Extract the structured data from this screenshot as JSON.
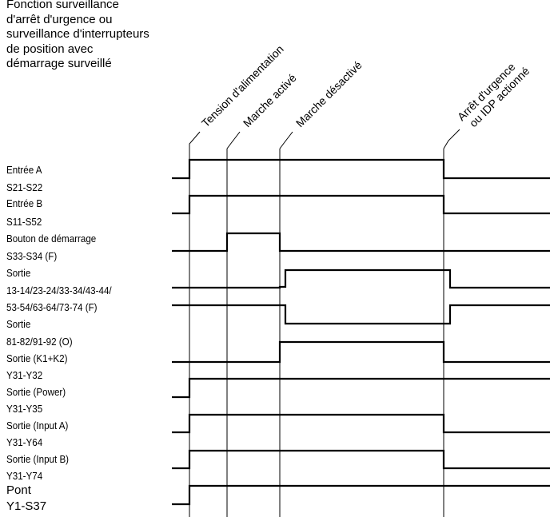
{
  "title": [
    "Fonction surveillance",
    "d'arrêt d'urgence ou",
    "surveillance d'interrupteurs",
    "de position avec",
    "démarrage surveillé"
  ],
  "events": [
    [
      "Tension d'alimentation"
    ],
    [
      "Marche activé"
    ],
    [
      "Marche désactivé"
    ],
    [
      "Arrêt d'urgence",
      "ou IDP actionné"
    ]
  ],
  "signal_labels": [
    "Entrée A",
    "S21-S22",
    "Entrée B",
    "S11-S52",
    "Bouton de démarrage",
    "S33-S34 (F)",
    "Sortie",
    "13-14/23-24/33-34/43-44/",
    "53-54/63-64/73-74 (F)",
    "Sortie",
    "81-82/91-92 (O)",
    "Sortie (K1+K2)",
    "Y31-Y32",
    "Sortie (Power)",
    "Y31-Y35",
    "Sortie (Input A)",
    "Y31-Y64",
    "Sortie (Input B)",
    "Y31-Y74",
    "Pont",
    "Y1-S37"
  ],
  "waveforms": [
    {
      "name": "entree-a",
      "pattern": "off-on-off (E0–E3)"
    },
    {
      "name": "entree-b",
      "pattern": "off-on-off (E0–E3)"
    },
    {
      "name": "bouton-demarrage",
      "pattern": "pulse E1–E2"
    },
    {
      "name": "sortie-no",
      "pattern": "on E2–E3"
    },
    {
      "name": "sortie-nc",
      "pattern": "off E2–E3"
    },
    {
      "name": "sortie-k1k2",
      "pattern": "on E2–E3"
    },
    {
      "name": "sortie-power",
      "pattern": "on from E0"
    },
    {
      "name": "sortie-input-a",
      "pattern": "on E0–E3"
    },
    {
      "name": "sortie-input-b",
      "pattern": "on E0–E3"
    },
    {
      "name": "pont",
      "pattern": "on from E0"
    }
  ]
}
